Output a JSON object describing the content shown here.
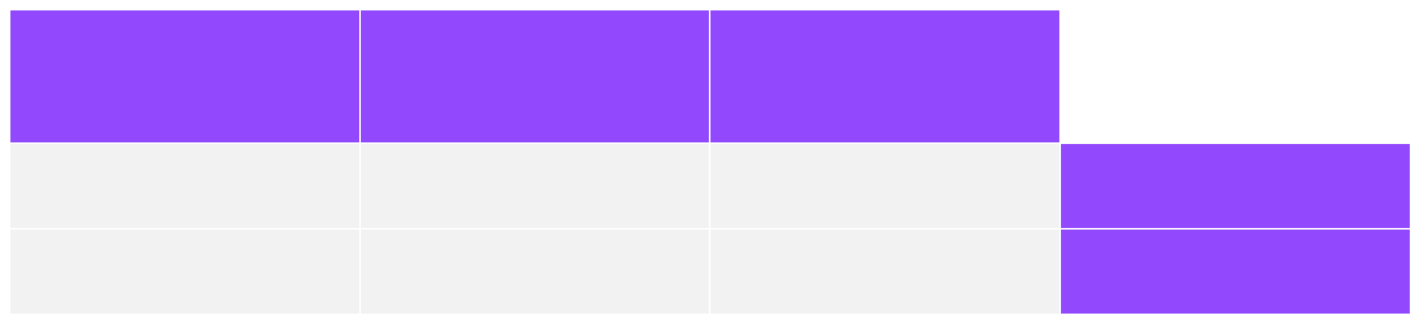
{
  "colors": {
    "accent": "#9249FD",
    "cell_fill": "#F2F2F2",
    "background": "#FFFFFF",
    "gridline": "#FFFFFF"
  },
  "table": {
    "header_fill": [
      "accent",
      "accent",
      "accent",
      "background"
    ],
    "rows": [
      {
        "fill": [
          "cell_fill",
          "cell_fill",
          "cell_fill",
          "accent"
        ]
      },
      {
        "fill": [
          "cell_fill",
          "cell_fill",
          "cell_fill",
          "accent"
        ]
      }
    ]
  }
}
